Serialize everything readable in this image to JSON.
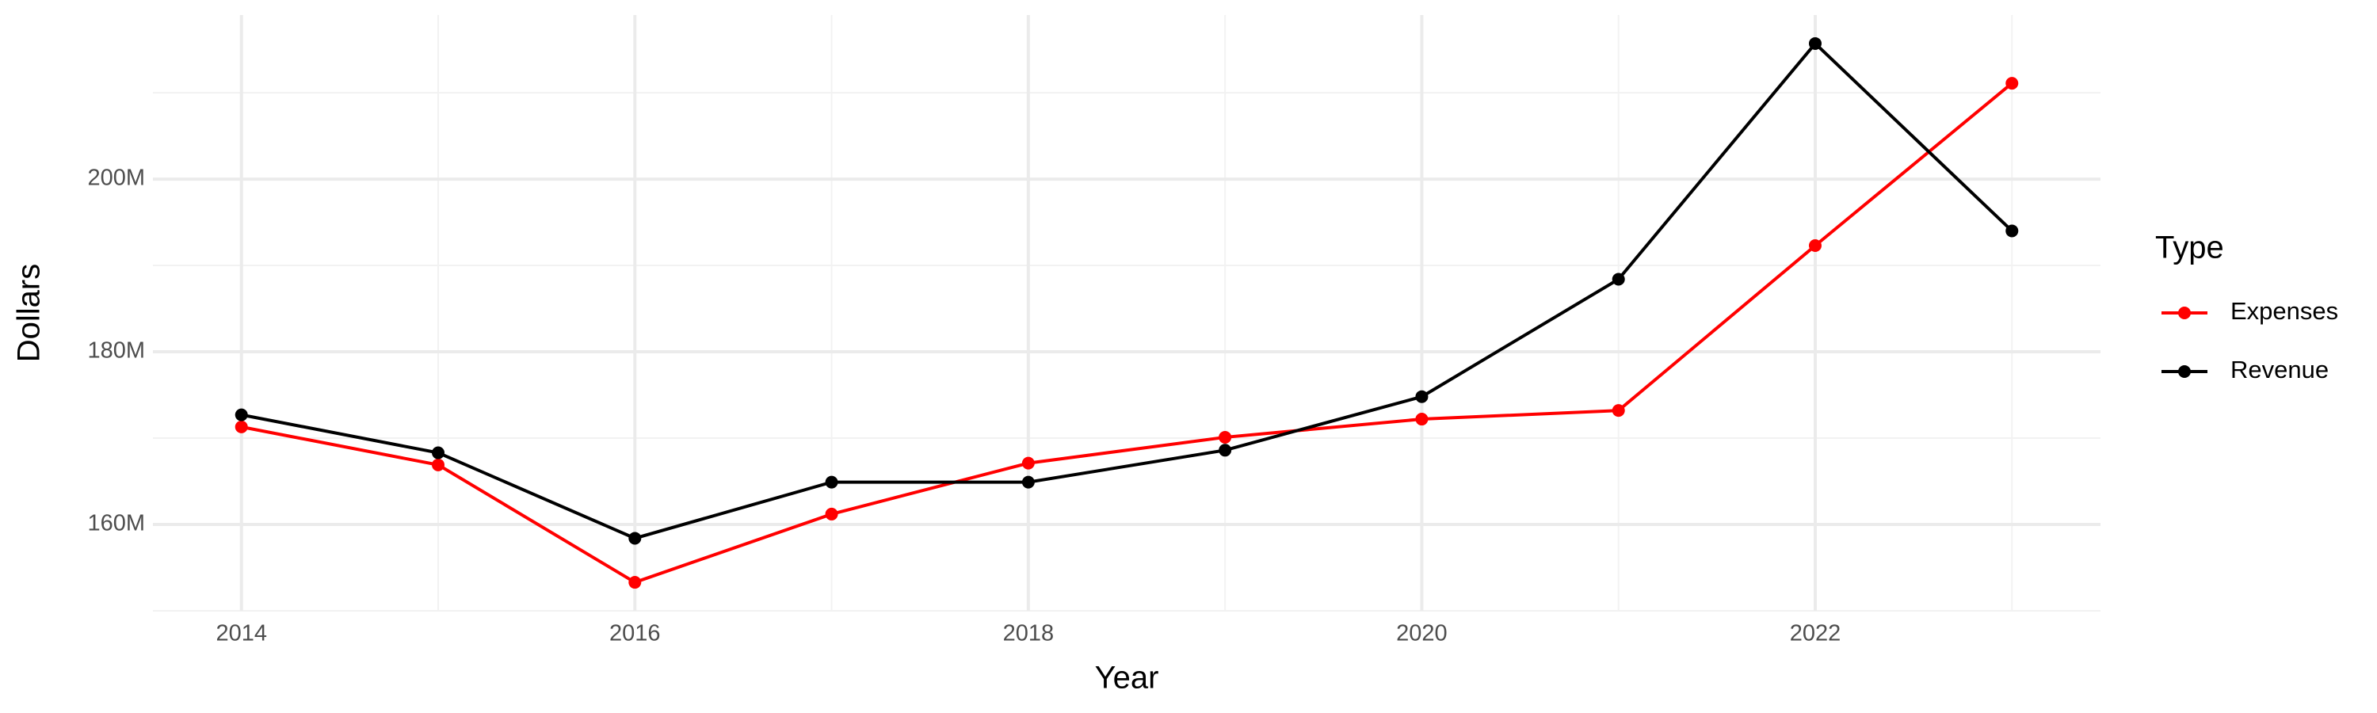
{
  "chart_data": {
    "type": "line",
    "x_label": "Year",
    "y_label": "Dollars",
    "legend_title": "Type",
    "x": [
      2014,
      2015,
      2016,
      2017,
      2018,
      2019,
      2020,
      2021,
      2022,
      2023
    ],
    "series": [
      {
        "name": "Expenses",
        "color": "#ff0000",
        "values": [
          171300000,
          166900000,
          153300000,
          161200000,
          167100000,
          170100000,
          172200000,
          173200000,
          192300000,
          211100000
        ]
      },
      {
        "name": "Revenue",
        "color": "#000000",
        "values": [
          172700000,
          168300000,
          158400000,
          164900000,
          164900000,
          168600000,
          174800000,
          188400000,
          215700000,
          194000000
        ]
      }
    ],
    "xlim": [
      2013.55,
      2023.45
    ],
    "xticks": [
      2014,
      2016,
      2018,
      2020,
      2022
    ],
    "x_minor_ticks": [
      2015,
      2017,
      2019,
      2021,
      2023
    ],
    "ylim": [
      150000000,
      219000000
    ],
    "yticks": [
      {
        "value": 160000000,
        "label": "160M"
      },
      {
        "value": 180000000,
        "label": "180M"
      },
      {
        "value": 200000000,
        "label": "200M"
      }
    ],
    "y_minor_ticks": [
      150000000,
      170000000,
      190000000,
      210000000
    ],
    "grid": true,
    "legend_position": "right"
  }
}
